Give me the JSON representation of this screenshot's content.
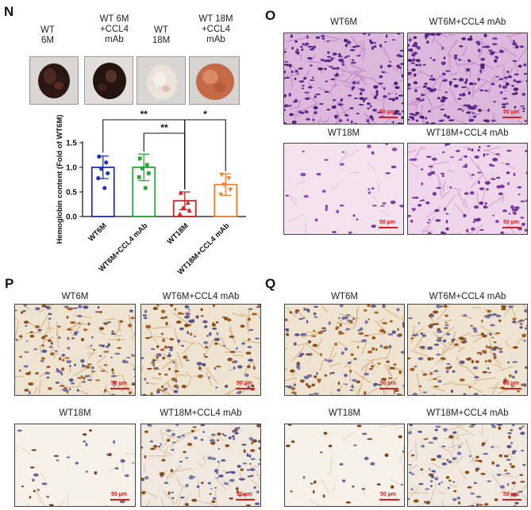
{
  "panels": {
    "N": "N",
    "O": "O",
    "P": "P",
    "Q": "Q"
  },
  "gel_labels": [
    {
      "text": "WT\n6M"
    },
    {
      "text": "WT 6M\n+CCL4\nmAb"
    },
    {
      "text": "WT\n18M"
    },
    {
      "text": "WT 18M\n+CCL4\nmAb"
    }
  ],
  "chart_data": {
    "type": "bar",
    "categories": [
      "WT6M",
      "WT6M+CCL4 mAb",
      "WT18M",
      "WT18M+CCL4 mAb"
    ],
    "values": [
      1.0,
      1.0,
      0.32,
      0.65
    ],
    "errors": [
      0.23,
      0.27,
      0.18,
      0.22
    ],
    "points": [
      [
        1.22,
        1.1,
        0.97,
        0.88,
        0.78,
        0.58
      ],
      [
        1.18,
        1.05,
        0.98,
        0.88,
        0.8,
        0.58
      ],
      [
        0.48,
        0.28,
        0.18,
        0.12,
        0.05
      ],
      [
        0.85,
        0.78,
        0.65,
        0.55,
        0.45
      ]
    ],
    "colors": [
      "#2233bb",
      "#22aa33",
      "#d21f1f",
      "#f08030"
    ],
    "ylabel": "Hemoglobin content (Fold of WT6M)",
    "yticks": [
      "0.0",
      "0.5",
      "1.0",
      "1.5"
    ],
    "ylim": [
      0,
      1.5
    ],
    "significance": [
      {
        "from": 0,
        "to": 2,
        "label": "**"
      },
      {
        "from": 1,
        "to": 2,
        "label": "**"
      },
      {
        "from": 2,
        "to": 3,
        "label": "*"
      }
    ]
  },
  "O": {
    "titles": [
      "WT6M",
      "WT6M+CCL4 mAb",
      "WT18M",
      "WT18M+CCL4 mAb"
    ],
    "scale": "50 µm"
  },
  "P": {
    "titles": [
      "WT6M",
      "WT6M+CCL4 mAb",
      "WT18M",
      "WT18M+CCL4 mAb"
    ],
    "scale": "50 µm"
  },
  "Q": {
    "titles": [
      "WT6M",
      "WT6M+CCL4 mAb",
      "WT18M",
      "WT18M+CCL4 mAb"
    ],
    "scale": "50 µm"
  }
}
